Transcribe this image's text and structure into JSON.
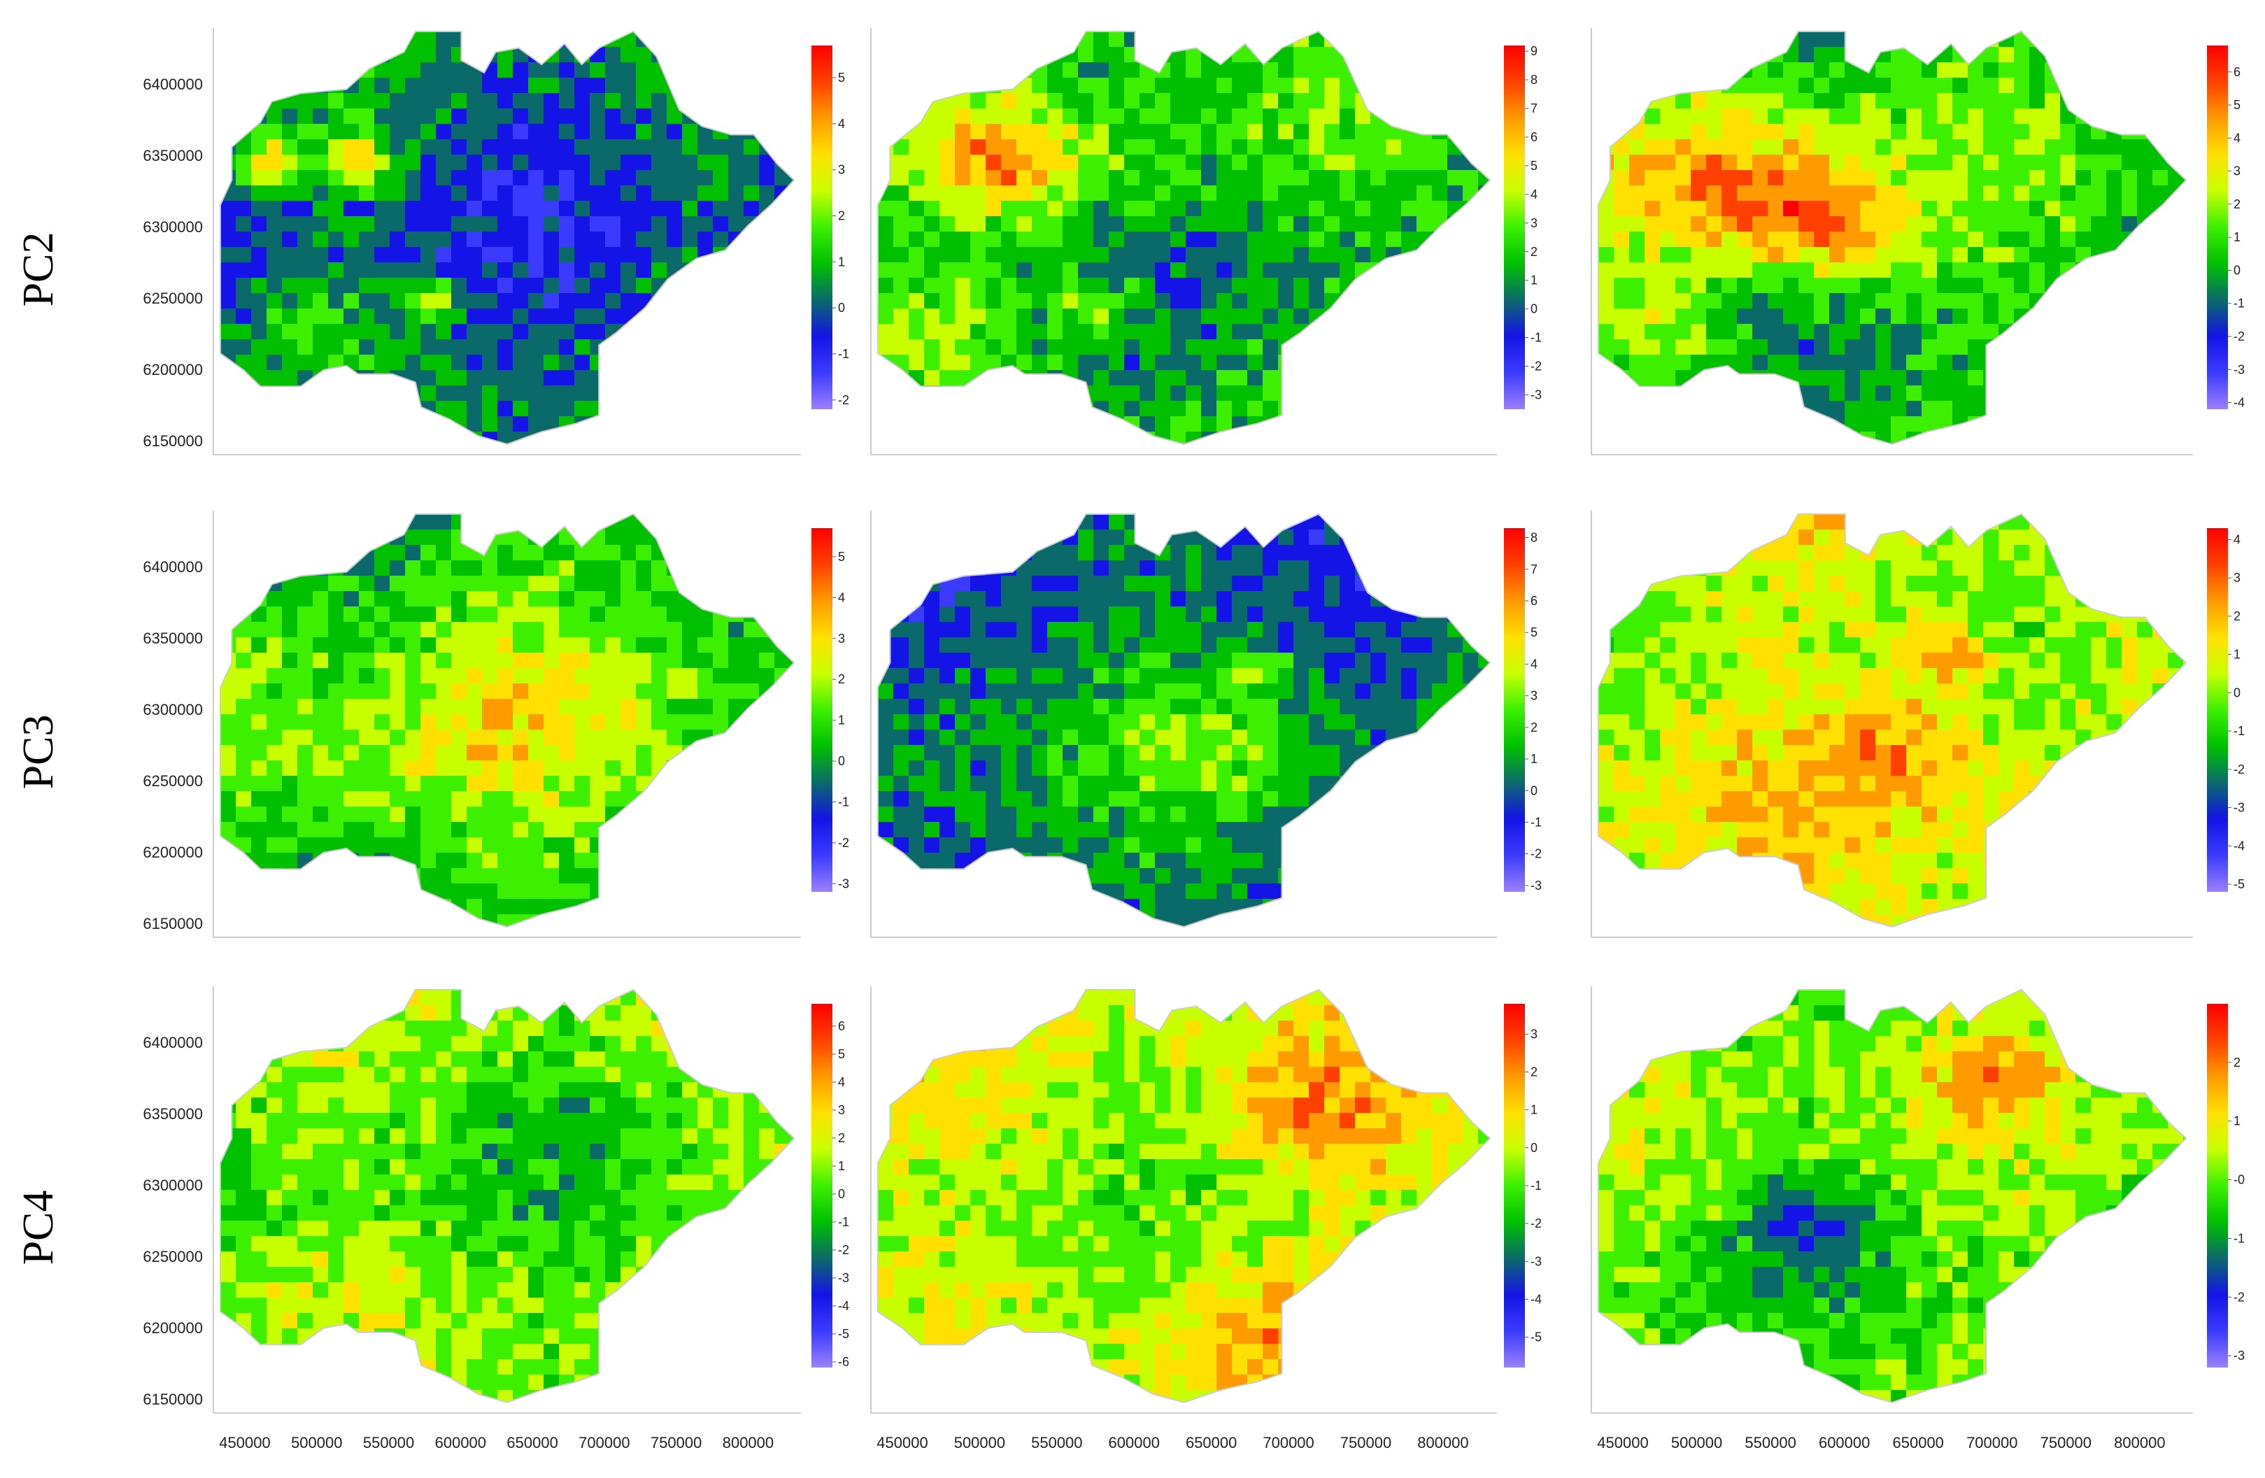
{
  "figure": {
    "rows": [
      "PC2",
      "PC3",
      "PC4"
    ],
    "colors": {
      "scale": [
        "#9b80ff",
        "#3b3bff",
        "#1414e6",
        "#0a6a6a",
        "#00c000",
        "#3cf000",
        "#c8ff00",
        "#ffe000",
        "#ff9a00",
        "#ff4000",
        "#ff0000"
      ],
      "outline": "#cccccc"
    }
  },
  "chart_data": [
    {
      "type": "heatmap",
      "row": "PC2",
      "col": 1,
      "y_ticks": [
        "6400000",
        "6350000",
        "6300000",
        "6250000",
        "6200000",
        "6150000"
      ],
      "x_ticks": [],
      "colorbar": {
        "labels": [
          "5",
          "4",
          "3",
          "2",
          "1",
          "0",
          "-1",
          "-2"
        ],
        "range": [
          -2.2,
          5.7
        ]
      },
      "bias": -0.6,
      "hot": [
        [
          0.07,
          0.3,
          0.06,
          1.2
        ],
        [
          0.22,
          0.29,
          0.07,
          1.1
        ],
        [
          0.36,
          0.62,
          0.05,
          0.9
        ],
        [
          0.15,
          0.7,
          0.1,
          0.3
        ]
      ]
    },
    {
      "type": "heatmap",
      "row": "PC2",
      "col": 2,
      "y_ticks": [],
      "x_ticks": [],
      "colorbar": {
        "labels": [
          "9",
          "8",
          "7",
          "6",
          "5",
          "4",
          "3",
          "2",
          "1",
          "0",
          "-1",
          "-2",
          "-3"
        ],
        "range": [
          -3.5,
          9.2
        ]
      },
      "bias": -0.3,
      "hot": [
        [
          0.18,
          0.3,
          0.12,
          0.9
        ],
        [
          0.35,
          0.65,
          0.08,
          0.6
        ],
        [
          0.1,
          0.7,
          0.15,
          0.4
        ],
        [
          0.3,
          0.3,
          0.2,
          0.3
        ]
      ]
    },
    {
      "type": "heatmap",
      "row": "PC2",
      "col": 3,
      "y_ticks": [],
      "x_ticks": [],
      "colorbar": {
        "labels": [
          "6",
          "5",
          "4",
          "3",
          "2",
          "1",
          "0",
          "-1",
          "-2",
          "-3",
          "-4"
        ],
        "range": [
          -4.2,
          6.8
        ]
      },
      "bias": -0.2,
      "hot": [
        [
          0.2,
          0.35,
          0.2,
          1.0
        ],
        [
          0.38,
          0.45,
          0.15,
          0.9
        ],
        [
          0.1,
          0.7,
          0.1,
          0.6
        ]
      ]
    },
    {
      "type": "heatmap",
      "row": "PC3",
      "col": 1,
      "y_ticks": [
        "6400000",
        "6350000",
        "6300000",
        "6250000",
        "6200000",
        "6150000"
      ],
      "x_ticks": [],
      "colorbar": {
        "labels": [
          "5",
          "4",
          "3",
          "2",
          "1",
          "0",
          "-1",
          "-2",
          "-3"
        ],
        "range": [
          -3.2,
          5.7
        ]
      },
      "bias": -0.1,
      "hot": [
        [
          0.5,
          0.5,
          0.2,
          0.4
        ],
        [
          0.2,
          0.6,
          0.2,
          0.3
        ]
      ]
    },
    {
      "type": "heatmap",
      "row": "PC3",
      "col": 2,
      "y_ticks": [],
      "x_ticks": [],
      "colorbar": {
        "labels": [
          "8",
          "7",
          "6",
          "5",
          "4",
          "3",
          "2",
          "1",
          "0",
          "-1",
          "-2",
          "-3"
        ],
        "range": [
          -3.2,
          8.3
        ]
      },
      "bias": -0.5,
      "hot": [
        [
          0.6,
          0.35,
          0.05,
          0.7
        ],
        [
          0.55,
          0.55,
          0.15,
          0.4
        ]
      ]
    },
    {
      "type": "heatmap",
      "row": "PC3",
      "col": 3,
      "y_ticks": [],
      "x_ticks": [],
      "colorbar": {
        "labels": [
          "4",
          "3",
          "2",
          "1",
          "0",
          "-1",
          "-2",
          "-3",
          "-4",
          "-5"
        ],
        "range": [
          -5.2,
          4.3
        ]
      },
      "bias": 0.35,
      "hot": [
        [
          0.58,
          0.32,
          0.08,
          0.7
        ],
        [
          0.5,
          0.55,
          0.12,
          0.5
        ]
      ]
    },
    {
      "type": "heatmap",
      "row": "PC4",
      "col": 1,
      "y_ticks": [
        "6400000",
        "6350000",
        "6300000",
        "6250000",
        "6200000",
        "6150000"
      ],
      "x_ticks": [
        "450000",
        "500000",
        "550000",
        "600000",
        "650000",
        "700000",
        "750000",
        "800000"
      ],
      "colorbar": {
        "labels": [
          "6",
          "5",
          "4",
          "3",
          "2",
          "1",
          "0",
          "-1",
          "-2",
          "-3",
          "-4",
          "-5",
          "-6"
        ],
        "range": [
          -6.2,
          6.8
        ]
      },
      "bias": 0.05,
      "hot": [
        [
          0.97,
          0.4,
          0.03,
          0.5
        ]
      ]
    },
    {
      "type": "heatmap",
      "row": "PC4",
      "col": 2,
      "y_ticks": [],
      "x_ticks": [
        "450000",
        "500000",
        "550000",
        "600000",
        "650000",
        "700000",
        "750000",
        "800000"
      ],
      "colorbar": {
        "labels": [
          "3",
          "2",
          "1",
          "0",
          "-1",
          "-2",
          "-3",
          "-4",
          "-5"
        ],
        "range": [
          -5.8,
          3.8
        ]
      },
      "bias": 0.25,
      "hot": [
        [
          0.7,
          0.3,
          0.15,
          0.5
        ],
        [
          0.6,
          0.8,
          0.2,
          0.5
        ]
      ]
    },
    {
      "type": "heatmap",
      "row": "PC4",
      "col": 3,
      "y_ticks": [],
      "x_ticks": [
        "450000",
        "500000",
        "550000",
        "600000",
        "650000",
        "700000",
        "750000",
        "800000"
      ],
      "colorbar": {
        "labels": [
          "2",
          "1",
          "-0",
          "-1",
          "-2",
          "-3"
        ],
        "range": [
          -3.2,
          3.0
        ]
      },
      "bias": 0.05,
      "hot": [
        [
          0.65,
          0.2,
          0.1,
          0.6
        ],
        [
          0.35,
          0.55,
          0.1,
          -0.6
        ]
      ]
    }
  ]
}
